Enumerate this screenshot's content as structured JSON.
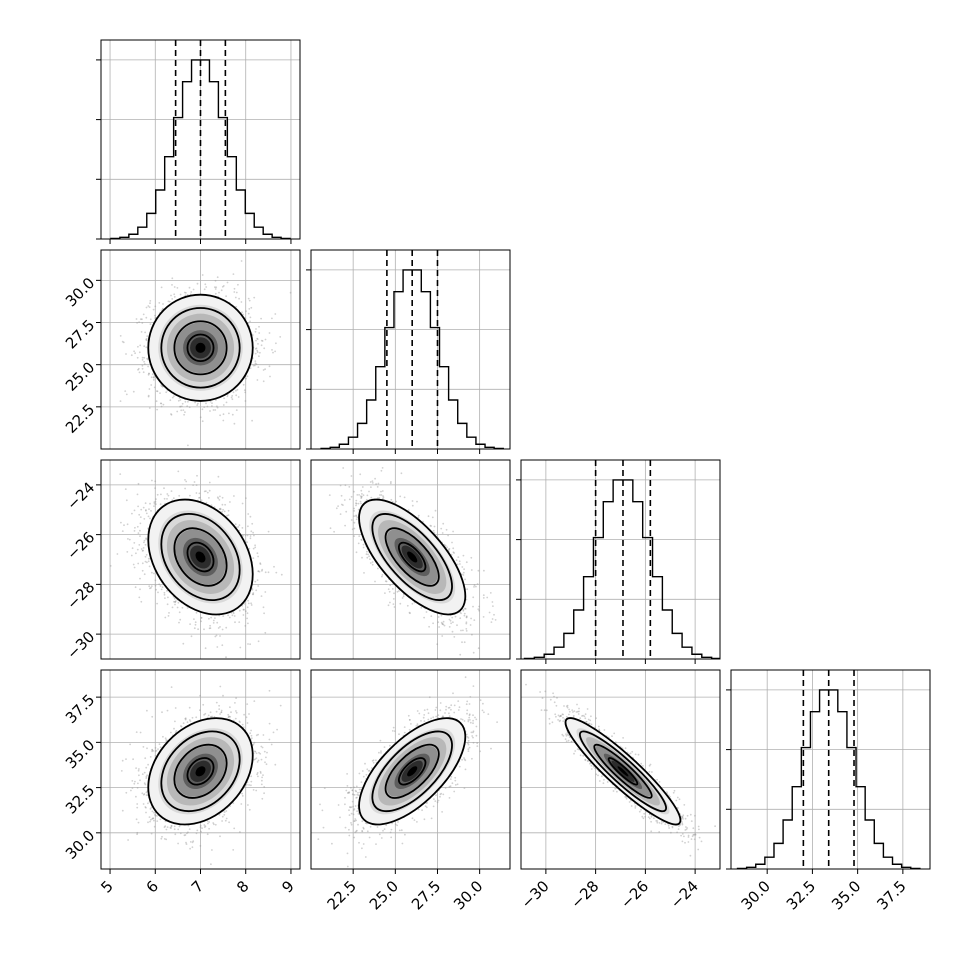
{
  "chart_data": {
    "type": "corner",
    "title": "",
    "n_params": 4,
    "grid": true,
    "axis_labels": [
      "",
      "",
      "",
      ""
    ],
    "x_ticks": [
      [
        "5",
        "6",
        "7",
        "8",
        "9"
      ],
      [
        "22.5",
        "25.0",
        "27.5",
        "30.0"
      ],
      [
        "−30",
        "−28",
        "−26",
        "−24"
      ],
      [
        "30.0",
        "32.5",
        "35.0",
        "37.5"
      ]
    ],
    "y_ticks": [
      [],
      [
        "22.5",
        "25.0",
        "27.5",
        "30.0"
      ],
      [
        "−30",
        "−28",
        "−26",
        "−24"
      ],
      [
        "30.0",
        "32.5",
        "35.0",
        "37.5"
      ]
    ],
    "params": [
      {
        "mean": 7.0,
        "sd": 0.55,
        "range": [
          4.8,
          9.2
        ],
        "quantiles": [
          6.45,
          7.0,
          7.55
        ]
      },
      {
        "mean": 26.0,
        "sd": 1.5,
        "range": [
          20.0,
          31.8
        ],
        "quantiles": [
          24.5,
          26.0,
          27.5
        ]
      },
      {
        "mean": -26.9,
        "sd": 1.1,
        "range": [
          -31.0,
          -23.0
        ],
        "quantiles": [
          -28.0,
          -26.9,
          -25.8
        ]
      },
      {
        "mean": 33.4,
        "sd": 1.4,
        "range": [
          28.0,
          39.0
        ],
        "quantiles": [
          32.0,
          33.4,
          34.8
        ]
      }
    ],
    "correlations": [
      {
        "i": 1,
        "j": 0,
        "r": 0.0
      },
      {
        "i": 2,
        "j": 0,
        "r": -0.3
      },
      {
        "i": 2,
        "j": 1,
        "r": -0.68
      },
      {
        "i": 3,
        "j": 0,
        "r": 0.3
      },
      {
        "i": 3,
        "j": 1,
        "r": 0.65
      },
      {
        "i": 3,
        "j": 2,
        "r": -0.92
      }
    ],
    "histogram_bins": 20,
    "contour_levels_sigma": [
      0.5,
      1.0,
      1.5,
      2.0
    ],
    "colors": {
      "line": "#000000",
      "scatter": "#9a9a9a",
      "grid": "#b0b0b0"
    }
  }
}
